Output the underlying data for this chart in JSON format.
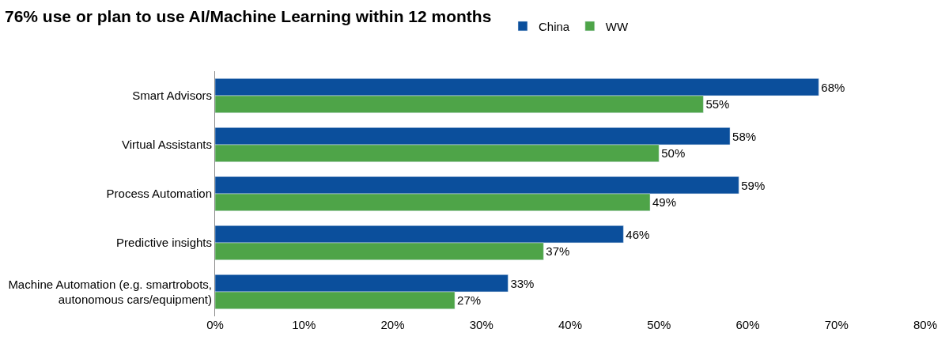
{
  "chart_data": {
    "type": "bar",
    "orientation": "horizontal",
    "title": "76% use or plan to use AI/Machine Learning within 12 months",
    "categories": [
      "Smart Advisors",
      "Virtual Assistants",
      "Process Automation",
      "Predictive insights",
      "Machine Automation (e.g. smartrobots, autonomous cars/equipment)"
    ],
    "series": [
      {
        "name": "China",
        "color": "#0b4f9c",
        "values": [
          68,
          58,
          59,
          46,
          33
        ],
        "value_labels": [
          "68%",
          "58%",
          "59%",
          "46%",
          "33%"
        ]
      },
      {
        "name": "WW",
        "color": "#4ea448",
        "values": [
          55,
          50,
          49,
          37,
          27
        ],
        "value_labels": [
          "55%",
          "50%",
          "49%",
          "37%",
          "27%"
        ]
      }
    ],
    "xlim": [
      0,
      80
    ],
    "xticks": [
      {
        "value": 0,
        "label": "0%"
      },
      {
        "value": 10,
        "label": "10%"
      },
      {
        "value": 20,
        "label": "20%"
      },
      {
        "value": 30,
        "label": "30%"
      },
      {
        "value": 40,
        "label": "40%"
      },
      {
        "value": 50,
        "label": "50%"
      },
      {
        "value": 60,
        "label": "60%"
      },
      {
        "value": 70,
        "label": "70%"
      },
      {
        "value": 80,
        "label": "80%"
      }
    ],
    "legend": "top",
    "grid": false
  }
}
